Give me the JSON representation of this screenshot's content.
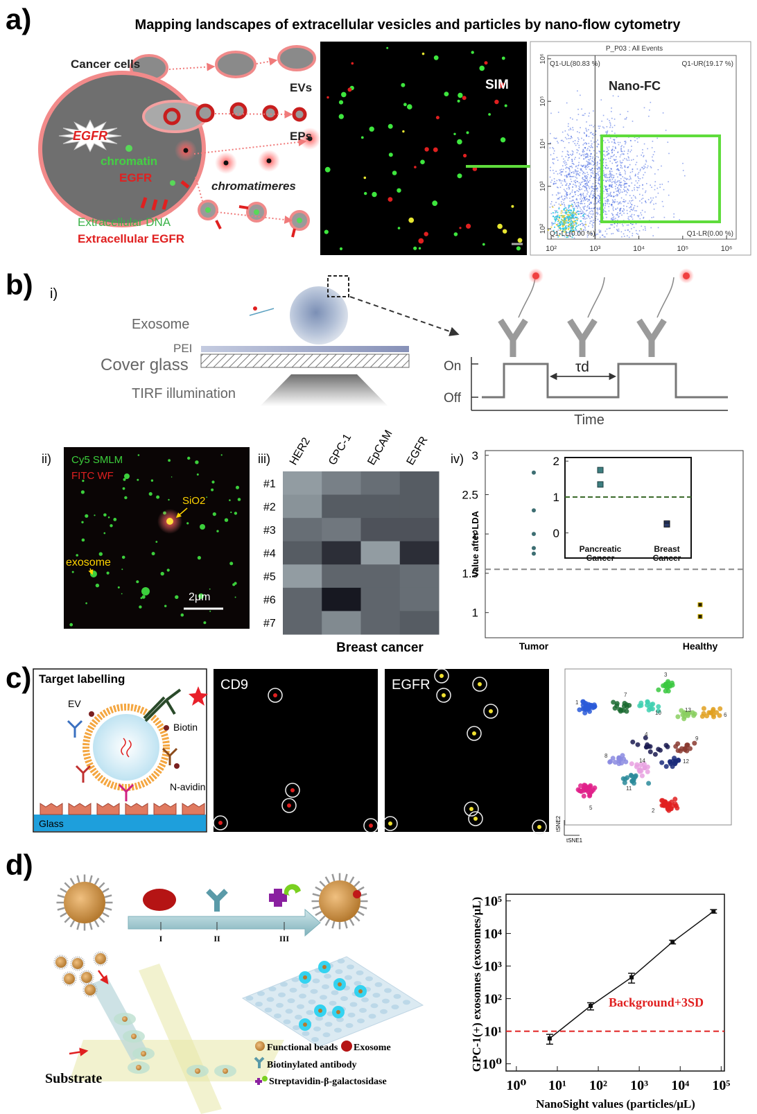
{
  "panel_a": {
    "label": "a)",
    "title": "Mapping landscapes of extracellular vesicles and particles by nano-flow cytometry",
    "diagram": {
      "cancer_cells": "Cancer cells",
      "evs": "EVs",
      "eps": "EPs",
      "egfr_burst": "EGFR",
      "chromatin": "chromatin",
      "egfr": "EGFR",
      "chromatimeres": "chromatimeres",
      "extracellular_dna": "Extracellular DNA",
      "extracellular_egfr": "Extracellular EGFR"
    },
    "sim": {
      "label": "SIM"
    },
    "nano_fc": {
      "title": "P_P03 : All Events",
      "label": "Nano-FC",
      "quadrants": [
        "Q1-UL(80.83 %)",
        "Q1-UR(19.17 %)",
        "Q1-LL(0.00 %)",
        "Q1-LR(0.00 %)"
      ],
      "xlim": [
        83,
        1660000
      ],
      "xticks": [
        {
          "value": 100,
          "label": "10²"
        },
        {
          "value": 1000,
          "label": "10³"
        },
        {
          "value": 10000,
          "label": "10⁴"
        },
        {
          "value": 100000,
          "label": "10⁵"
        },
        {
          "value": 1000000,
          "label": "10⁶"
        }
      ],
      "ylim": [
        57,
        1200000
      ],
      "yticks": [
        {
          "value": 100,
          "label": "10²"
        },
        {
          "value": 1000,
          "label": "10³"
        },
        {
          "value": 10000,
          "label": "10⁴"
        },
        {
          "value": 100000,
          "label": "10⁵"
        },
        {
          "value": 1000000,
          "label": "10⁶"
        }
      ]
    }
  },
  "panel_b": {
    "label": "b)",
    "i": {
      "label": "i)",
      "exosome": "Exosome",
      "pei": "PEI",
      "cover_glass": "Cover glass",
      "tirf": "TIRF illumination",
      "on": "On",
      "off": "Off",
      "tau": "τd",
      "time": "Time"
    },
    "ii": {
      "label": "ii)",
      "cy5": "Cy5 SMLM",
      "fitc": "FITC WF",
      "sio2": "SiO2",
      "exosome": "exosome",
      "scale": "2μm"
    },
    "iii": {
      "label": "iii)",
      "columns": [
        "HER2",
        "GPC-1",
        "EpCAM",
        "EGFR"
      ],
      "rows": [
        "#1",
        "#2",
        "#3",
        "#4",
        "#5",
        "#6",
        "#7"
      ],
      "values": [
        [
          0.75,
          0.6,
          0.5,
          0.4
        ],
        [
          0.7,
          0.4,
          0.4,
          0.4
        ],
        [
          0.5,
          0.55,
          0.35,
          0.35
        ],
        [
          0.4,
          0.15,
          0.75,
          0.15
        ],
        [
          0.75,
          0.45,
          0.45,
          0.5
        ],
        [
          0.45,
          0.03,
          0.45,
          0.5
        ],
        [
          0.45,
          0.65,
          0.45,
          0.4
        ]
      ],
      "caption": "Breast cancer"
    },
    "iv": {
      "label": "iv)",
      "ylabel": "Value after LDA",
      "ylim": [
        0.68,
        3.06
      ],
      "yticks": [
        1,
        1.5,
        2,
        2.5,
        3
      ],
      "categories": [
        "Tumor",
        "Healthy"
      ],
      "points": [
        [
          2.78,
          2.3,
          2.0,
          1.82,
          1.75
        ],
        [
          1.1,
          0.95
        ]
      ],
      "threshold": 1.55,
      "inset": {
        "ylim": [
          -0.7,
          2.1
        ],
        "yticks": [
          0,
          1,
          2
        ],
        "categories": [
          "Pancreatic Cancer",
          "Breast Cancer"
        ],
        "points": [
          [
            1.75,
            1.35
          ],
          [
            0.28,
            0.22
          ]
        ],
        "threshold": 1
      }
    }
  },
  "panel_c": {
    "label": "c)",
    "labelling": {
      "title": "Target labelling",
      "ev": "EV",
      "biotin": "Biotin",
      "navidin": "N-avidin",
      "glass": "Glass"
    },
    "cd9": "CD9",
    "egfr": "EGFR",
    "tsne": {
      "clusters": [
        "1",
        "2",
        "3",
        "4",
        "5",
        "6",
        "7",
        "8",
        "9",
        "10",
        "11",
        "12",
        "13",
        "14"
      ],
      "xlabel": "tSNE1",
      "ylabel": "tSNE2"
    }
  },
  "panel_d": {
    "label": "d)",
    "steps": [
      "I",
      "II",
      "III"
    ],
    "substrate": "Substrate",
    "legend": [
      "Functional beads",
      "Exosome",
      "Biotinylated antibody",
      "Streptavidin-β-galactosidase"
    ],
    "plot": {
      "type": "line",
      "xlabel": "NanoSight values (particles/μL)",
      "ylabel": "GPC-1(+) exosomes (exosomes/μL)",
      "log_scale": true,
      "xlim": [
        0.56,
        120000
      ],
      "ylim": [
        0.6,
        160000
      ],
      "xticks": [
        {
          "value": 1,
          "label": "10⁰"
        },
        {
          "value": 10,
          "label": "10¹"
        },
        {
          "value": 100,
          "label": "10²"
        },
        {
          "value": 1000,
          "label": "10³"
        },
        {
          "value": 10000,
          "label": "10⁴"
        },
        {
          "value": 100000,
          "label": "10⁵"
        }
      ],
      "yticks": [
        {
          "value": 1,
          "label": "10⁰"
        },
        {
          "value": 10,
          "label": "10¹"
        },
        {
          "value": 100,
          "label": "10²"
        },
        {
          "value": 1000,
          "label": "10³"
        },
        {
          "value": 10000,
          "label": "10⁴"
        },
        {
          "value": 100000,
          "label": "10⁵"
        }
      ],
      "x": [
        6.5,
        65,
        650,
        6500,
        65000
      ],
      "values": [
        6,
        60,
        450,
        5500,
        48000
      ],
      "errors": [
        2,
        15,
        150,
        700,
        6000
      ],
      "color": "#111111",
      "background": {
        "label": "Background+3SD",
        "value": 10,
        "color": "#e02020"
      }
    }
  }
}
